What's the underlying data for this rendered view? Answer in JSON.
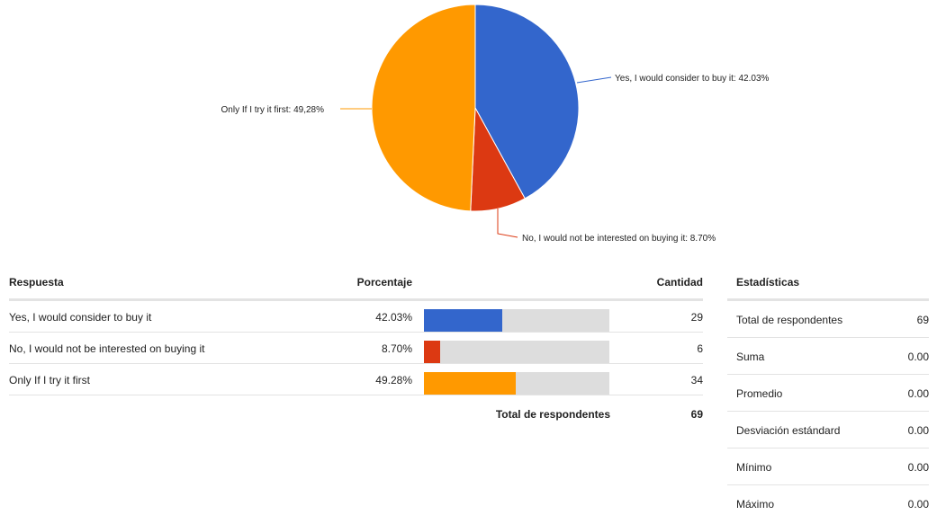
{
  "chart_data": {
    "type": "pie",
    "slices": [
      {
        "label": "Yes, I would consider to buy it: 42.03%",
        "category": "Yes, I would consider to buy it",
        "value": 42.03,
        "color": "#3366cc"
      },
      {
        "label": "No, I would not be interested on buying it: 8.70%",
        "category": "No, I would not be interested on buying it",
        "value": 8.7,
        "color": "#dc3912"
      },
      {
        "label": "Only If I try it first: 49,28%",
        "category": "Only If I try it first",
        "value": 49.28,
        "color": "#ff9900"
      }
    ]
  },
  "table": {
    "headers": {
      "response": "Respuesta",
      "percent": "Porcentaje",
      "count": "Cantidad"
    },
    "rows": [
      {
        "response": "Yes, I would consider to buy it",
        "percent_text": "42.03%",
        "percent": 42.03,
        "count": "29",
        "color": "#3366cc"
      },
      {
        "response": "No, I would not be interested on buying it",
        "percent_text": "8.70%",
        "percent": 8.7,
        "count": "6",
        "color": "#dc3912"
      },
      {
        "response": "Only If I try it first",
        "percent_text": "49.28%",
        "percent": 49.28,
        "count": "34",
        "color": "#ff9900"
      }
    ],
    "total_label": "Total de respondentes",
    "total_value": "69"
  },
  "stats": {
    "header": "Estadísticas",
    "rows": [
      {
        "label": "Total de respondentes",
        "value": "69"
      },
      {
        "label": "Suma",
        "value": "0.00"
      },
      {
        "label": "Promedio",
        "value": "0.00"
      },
      {
        "label": "Desviación estándard",
        "value": "0.00"
      },
      {
        "label": "Mínimo",
        "value": "0.00"
      },
      {
        "label": "Máximo",
        "value": "0.00"
      }
    ]
  }
}
